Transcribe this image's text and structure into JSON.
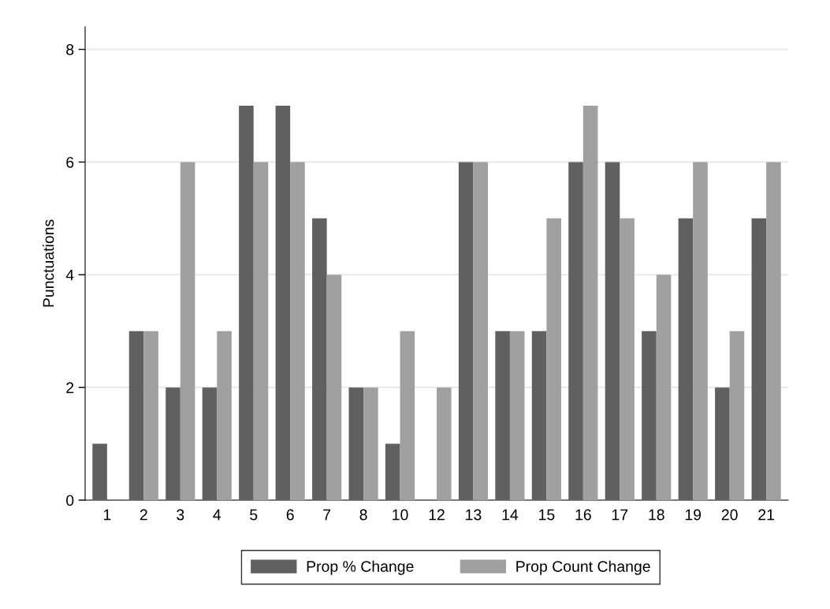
{
  "chart_data": {
    "type": "bar",
    "ylabel": "Punctuations",
    "categories": [
      "1",
      "2",
      "3",
      "4",
      "5",
      "6",
      "7",
      "8",
      "10",
      "12",
      "13",
      "14",
      "15",
      "16",
      "17",
      "18",
      "19",
      "20",
      "21"
    ],
    "series": [
      {
        "name": "Prop % Change",
        "color": "#606060",
        "values": [
          1,
          3,
          2,
          2,
          7,
          7,
          5,
          2,
          1,
          0,
          6,
          3,
          3,
          6,
          6,
          3,
          5,
          2,
          5
        ]
      },
      {
        "name": "Prop Count Change",
        "color": "#a0a0a0",
        "values": [
          0,
          3,
          6,
          3,
          6,
          6,
          4,
          2,
          3,
          2,
          6,
          3,
          5,
          7,
          5,
          4,
          6,
          3,
          6
        ]
      }
    ],
    "ylim": [
      0,
      8.4
    ],
    "yticks": [
      0,
      2,
      4,
      6,
      8
    ],
    "grid": "y",
    "legend": "bottom"
  }
}
